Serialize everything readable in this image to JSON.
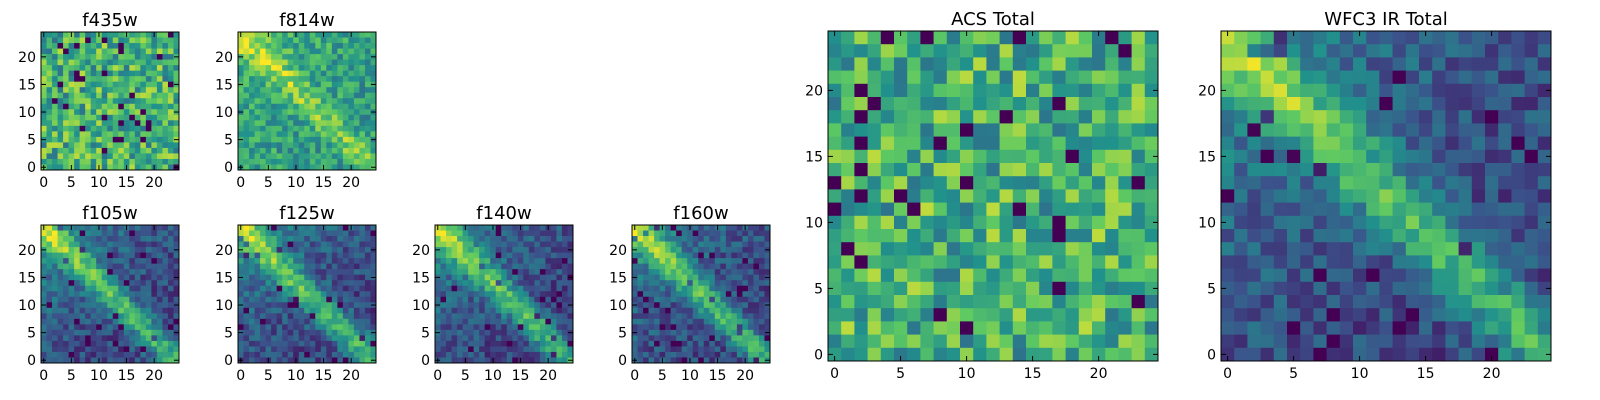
{
  "figure": {
    "colormap": "viridis",
    "colors": [
      "#440154",
      "#3b528b",
      "#21908d",
      "#5dc963",
      "#fde725"
    ]
  },
  "chart_data": [
    {
      "type": "heatmap",
      "title": "f435w",
      "grid_size": 25,
      "x_ticks": [
        0,
        5,
        10,
        15,
        20
      ],
      "y_ticks": [
        0,
        5,
        10,
        15,
        20
      ],
      "xlim": [
        -0.5,
        24.5
      ],
      "ylim": [
        -0.5,
        24.5
      ],
      "pattern": "noise",
      "seed": 11
    },
    {
      "type": "heatmap",
      "title": "f814w",
      "grid_size": 25,
      "x_ticks": [
        0,
        5,
        10,
        15,
        20
      ],
      "y_ticks": [
        0,
        5,
        10,
        15,
        20
      ],
      "xlim": [
        -0.5,
        24.5
      ],
      "ylim": [
        -0.5,
        24.5
      ],
      "pattern": "noise-diagonal",
      "seed": 23
    },
    {
      "type": "heatmap",
      "title": "f105w",
      "grid_size": 25,
      "x_ticks": [
        0,
        5,
        10,
        15,
        20
      ],
      "y_ticks": [
        0,
        5,
        10,
        15,
        20
      ],
      "xlim": [
        -0.5,
        24.5
      ],
      "ylim": [
        -0.5,
        24.5
      ],
      "pattern": "diagonal",
      "seed": 37
    },
    {
      "type": "heatmap",
      "title": "f125w",
      "grid_size": 25,
      "x_ticks": [
        0,
        5,
        10,
        15,
        20
      ],
      "y_ticks": [
        0,
        5,
        10,
        15,
        20
      ],
      "xlim": [
        -0.5,
        24.5
      ],
      "ylim": [
        -0.5,
        24.5
      ],
      "pattern": "diagonal",
      "seed": 41
    },
    {
      "type": "heatmap",
      "title": "f140w",
      "grid_size": 25,
      "x_ticks": [
        0,
        5,
        10,
        15,
        20
      ],
      "y_ticks": [
        0,
        5,
        10,
        15,
        20
      ],
      "xlim": [
        -0.5,
        24.5
      ],
      "ylim": [
        -0.5,
        24.5
      ],
      "pattern": "diagonal",
      "seed": 53
    },
    {
      "type": "heatmap",
      "title": "f160w",
      "grid_size": 25,
      "x_ticks": [
        0,
        5,
        10,
        15,
        20
      ],
      "y_ticks": [
        0,
        5,
        10,
        15,
        20
      ],
      "xlim": [
        -0.5,
        24.5
      ],
      "ylim": [
        -0.5,
        24.5
      ],
      "pattern": "diagonal",
      "seed": 67
    },
    {
      "type": "heatmap",
      "title": "ACS Total",
      "grid_size": 25,
      "x_ticks": [
        0,
        5,
        10,
        15,
        20
      ],
      "y_ticks": [
        0,
        5,
        10,
        15,
        20
      ],
      "xlim": [
        -0.5,
        24.5
      ],
      "ylim": [
        -0.5,
        24.5
      ],
      "pattern": "noise",
      "seed": 79
    },
    {
      "type": "heatmap",
      "title": "WFC3 IR Total",
      "grid_size": 25,
      "x_ticks": [
        0,
        5,
        10,
        15,
        20
      ],
      "y_ticks": [
        0,
        5,
        10,
        15,
        20
      ],
      "xlim": [
        -0.5,
        24.5
      ],
      "ylim": [
        -0.5,
        24.5
      ],
      "pattern": "diagonal",
      "seed": 97
    }
  ]
}
